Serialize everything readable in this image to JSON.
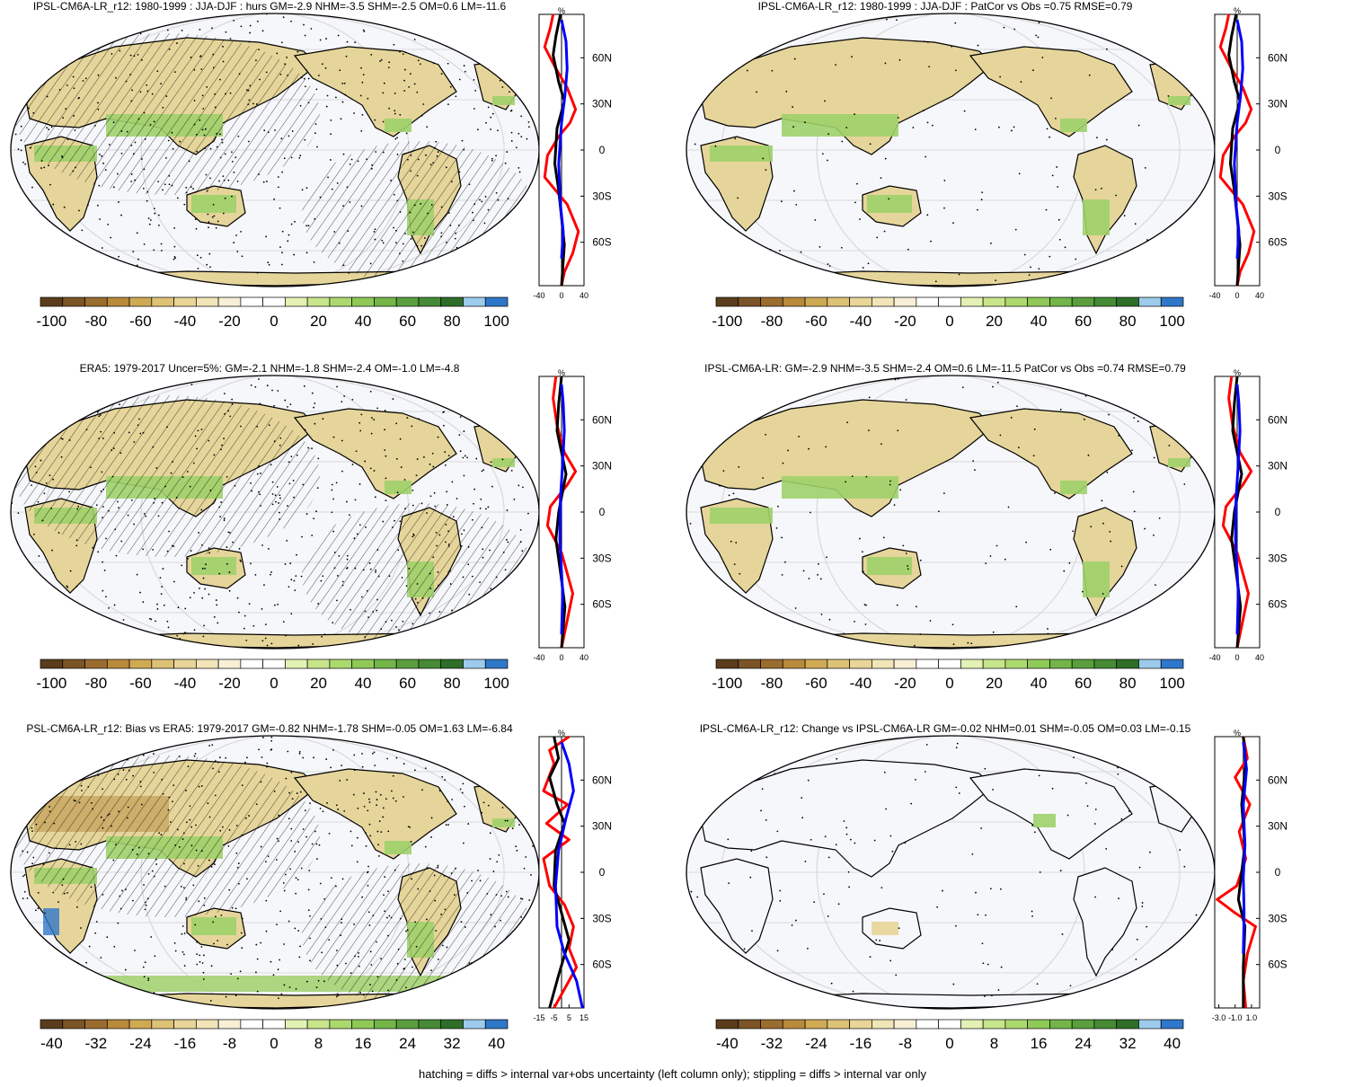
{
  "colors": {
    "scale": [
      "#5a3d1c",
      "#7a5426",
      "#9a6c2e",
      "#b88a3a",
      "#cfaa55",
      "#ddc276",
      "#e8d597",
      "#f1e4b7",
      "#f7efd6",
      "#ffffff",
      "#ffffff",
      "#e3f1b4",
      "#c9e58c",
      "#acd96e",
      "#8fc957",
      "#73b548",
      "#5a9e3e",
      "#458a34",
      "#2f6e28",
      "#9ccbec",
      "#2f77c9"
    ],
    "land_dry": "#e6d59a",
    "land_wet": "#9fd06a",
    "ocean": "#f6f7fb",
    "line_red": "#ff0000",
    "line_black": "#000000",
    "line_blue": "#0000ff"
  },
  "panels": [
    {
      "id": "a",
      "title": "IPSL-CM6A-LR_r12: 1980-1999 : JJA-DJF : hurs GM=-2.9 NHM=-3.5 SHM=-2.5 OM=0.6 LM=-11.6",
      "colorbar_ticks": [
        "-100",
        "-80",
        "-60",
        "-40",
        "-20",
        "0",
        "20",
        "40",
        "60",
        "80",
        "100"
      ],
      "zonal_xticks": [
        "-40",
        "0",
        "40"
      ],
      "zonal_xrange": [
        -40,
        40
      ],
      "lat_ticks": [
        "60N",
        "30N",
        "0",
        "30S",
        "60S"
      ],
      "unit": "%",
      "hatching": true,
      "stippling": "dense"
    },
    {
      "id": "b",
      "title": "IPSL-CM6A-LR_r12: 1980-1999 : JJA-DJF : PatCor vs Obs =0.75 RMSE=0.79",
      "colorbar_ticks": [
        "-100",
        "-80",
        "-60",
        "-40",
        "-20",
        "0",
        "20",
        "40",
        "60",
        "80",
        "100"
      ],
      "zonal_xticks": [
        "-40",
        "0",
        "40"
      ],
      "zonal_xrange": [
        -40,
        40
      ],
      "lat_ticks": [
        "60N",
        "30N",
        "0",
        "30S",
        "60S"
      ],
      "unit": "%",
      "hatching": false,
      "stippling": "sparse"
    },
    {
      "id": "c",
      "title": "ERA5: 1979-2017 Uncer=5%: GM=-2.1 NHM=-1.8 SHM=-2.4 OM=-1.0 LM=-4.8",
      "colorbar_ticks": [
        "-100",
        "-80",
        "-60",
        "-40",
        "-20",
        "0",
        "20",
        "40",
        "60",
        "80",
        "100"
      ],
      "zonal_xticks": [
        "-40",
        "0",
        "40"
      ],
      "zonal_xrange": [
        -40,
        40
      ],
      "lat_ticks": [
        "60N",
        "30N",
        "0",
        "30S",
        "60S"
      ],
      "unit": "%",
      "hatching": true,
      "stippling": "dense"
    },
    {
      "id": "d",
      "title": "IPSL-CM6A-LR: GM=-2.9 NHM=-3.5 SHM=-2.4 OM=0.6 LM=-11.5 PatCor vs Obs =0.74 RMSE=0.79",
      "colorbar_ticks": [
        "-100",
        "-80",
        "-60",
        "-40",
        "-20",
        "0",
        "20",
        "40",
        "60",
        "80",
        "100"
      ],
      "zonal_xticks": [
        "-40",
        "0",
        "40"
      ],
      "zonal_xrange": [
        -40,
        40
      ],
      "lat_ticks": [
        "60N",
        "30N",
        "0",
        "30S",
        "60S"
      ],
      "unit": "%",
      "hatching": false,
      "stippling": "sparse"
    },
    {
      "id": "e",
      "title": "PSL-CM6A-LR_r12: Bias vs ERA5: 1979-2017 GM=-0.82 NHM=-1.78 SHM=-0.05 OM=1.63 LM=-6.84",
      "colorbar_ticks": [
        "-40",
        "-32",
        "-24",
        "-16",
        "-8",
        "0",
        "8",
        "16",
        "24",
        "32",
        "40"
      ],
      "zonal_xticks": [
        "-15",
        "-5",
        "5",
        "15"
      ],
      "zonal_xrange": [
        -15,
        15
      ],
      "lat_ticks": [
        "60N",
        "30N",
        "0",
        "30S",
        "60S"
      ],
      "unit": "%",
      "hatching": true,
      "stippling": "dense"
    },
    {
      "id": "f",
      "title": "IPSL-CM6A-LR_r12: Change vs IPSL-CM6A-LR GM=-0.02 NHM=0.01 SHM=-0.05 OM=0.03 LM=-0.15",
      "colorbar_ticks": [
        "-40",
        "-32",
        "-24",
        "-16",
        "-8",
        "0",
        "8",
        "16",
        "24",
        "32",
        "40"
      ],
      "zonal_xticks": [
        "-3.0",
        "-1.0",
        "1.0"
      ],
      "zonal_xrange": [
        -3.5,
        2.0
      ],
      "lat_ticks": [
        "60N",
        "30N",
        "0",
        "30S",
        "60S"
      ],
      "unit": "%",
      "hatching": false,
      "stippling": "sparse"
    }
  ],
  "footer": "hatching = diffs > internal var+obs uncertainty (left column only); stippling = diffs > internal var only"
}
